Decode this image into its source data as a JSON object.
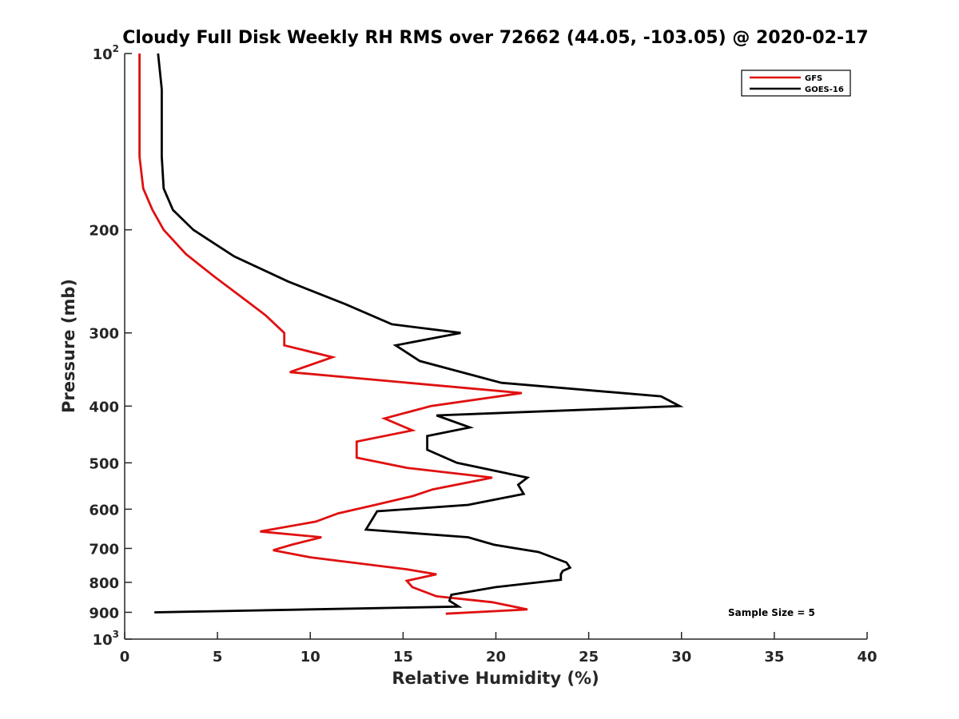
{
  "chart_data": {
    "type": "line",
    "title": "Cloudy Full Disk Weekly RH RMS over 72662 (44.05, -103.05) @ 2020-02-17",
    "xlabel": "Relative Humidity (%)",
    "ylabel": "Pressure (mb)",
    "xlim": [
      0,
      40
    ],
    "ylim": [
      1000,
      100
    ],
    "yscale": "log",
    "y_reversed": true,
    "grid": false,
    "legend_position": "top-right",
    "x_ticks": [
      0,
      5,
      10,
      15,
      20,
      25,
      30,
      35,
      40
    ],
    "x_tick_labels": [
      "0",
      "5",
      "10",
      "15",
      "20",
      "25",
      "30",
      "35",
      "40"
    ],
    "y_ticks": [
      {
        "value": 100,
        "base": "10",
        "sup": "2"
      },
      {
        "value": 200,
        "label": "200"
      },
      {
        "value": 300,
        "label": "300"
      },
      {
        "value": 400,
        "label": "400"
      },
      {
        "value": 500,
        "label": "500"
      },
      {
        "value": 600,
        "label": "600"
      },
      {
        "value": 700,
        "label": "700"
      },
      {
        "value": 800,
        "label": "800"
      },
      {
        "value": 900,
        "label": "900"
      },
      {
        "value": 1000,
        "base": "10",
        "sup": "3"
      }
    ],
    "annotation": "Sample Size = 5",
    "series": [
      {
        "name": "GFS",
        "color": "#e01010",
        "points": [
          [
            0.8,
            100
          ],
          [
            0.8,
            150
          ],
          [
            1.0,
            170
          ],
          [
            1.5,
            185
          ],
          [
            2.1,
            200
          ],
          [
            3.3,
            220
          ],
          [
            4.8,
            240
          ],
          [
            6.4,
            262
          ],
          [
            7.6,
            280
          ],
          [
            8.6,
            300
          ],
          [
            8.6,
            315
          ],
          [
            11.2,
            330
          ],
          [
            8.9,
            350
          ],
          [
            21.4,
            380
          ],
          [
            16.5,
            400
          ],
          [
            14.0,
            420
          ],
          [
            15.5,
            440
          ],
          [
            12.5,
            460
          ],
          [
            12.5,
            490
          ],
          [
            15.2,
            510
          ],
          [
            19.8,
            530
          ],
          [
            16.6,
            555
          ],
          [
            15.5,
            570
          ],
          [
            13.5,
            590
          ],
          [
            11.5,
            610
          ],
          [
            10.3,
            630
          ],
          [
            7.3,
            655
          ],
          [
            10.6,
            670
          ],
          [
            9.0,
            690
          ],
          [
            8.0,
            705
          ],
          [
            10.0,
            725
          ],
          [
            15.2,
            760
          ],
          [
            16.8,
            775
          ],
          [
            15.2,
            795
          ],
          [
            15.5,
            815
          ],
          [
            16.8,
            845
          ],
          [
            19.8,
            865
          ],
          [
            21.7,
            890
          ],
          [
            17.3,
            905
          ]
        ]
      },
      {
        "name": "GOES-16",
        "color": "#000000",
        "points": [
          [
            1.8,
            100
          ],
          [
            2.0,
            115
          ],
          [
            2.0,
            150
          ],
          [
            2.1,
            170
          ],
          [
            2.6,
            185
          ],
          [
            3.7,
            200
          ],
          [
            5.9,
            222
          ],
          [
            8.8,
            245
          ],
          [
            11.9,
            268
          ],
          [
            14.4,
            290
          ],
          [
            18.1,
            300
          ],
          [
            14.6,
            315
          ],
          [
            15.9,
            335
          ],
          [
            20.3,
            365
          ],
          [
            28.9,
            385
          ],
          [
            29.9,
            400
          ],
          [
            16.8,
            415
          ],
          [
            18.6,
            435
          ],
          [
            16.3,
            450
          ],
          [
            16.3,
            475
          ],
          [
            17.9,
            500
          ],
          [
            21.7,
            530
          ],
          [
            21.2,
            545
          ],
          [
            21.5,
            565
          ],
          [
            18.5,
            590
          ],
          [
            13.6,
            605
          ],
          [
            13.0,
            650
          ],
          [
            18.5,
            670
          ],
          [
            19.9,
            690
          ],
          [
            22.3,
            710
          ],
          [
            23.8,
            740
          ],
          [
            24.0,
            755
          ],
          [
            23.6,
            765
          ],
          [
            23.5,
            775
          ],
          [
            23.5,
            792
          ],
          [
            20.0,
            815
          ],
          [
            17.6,
            840
          ],
          [
            17.5,
            860
          ],
          [
            18.0,
            880
          ],
          [
            1.6,
            900
          ]
        ]
      }
    ]
  }
}
